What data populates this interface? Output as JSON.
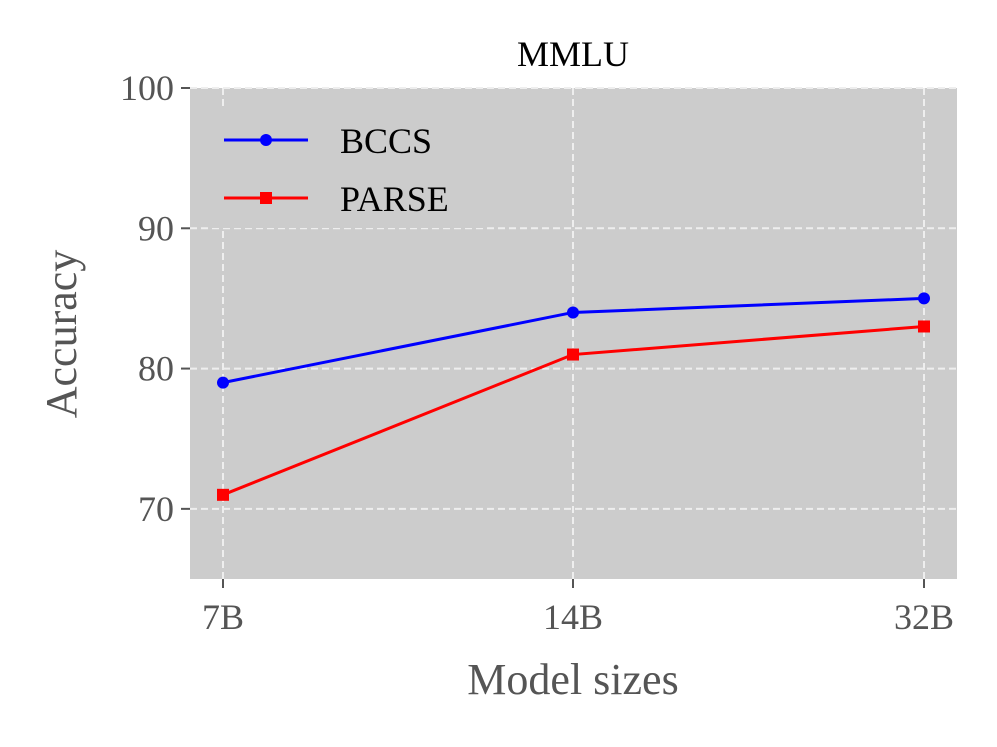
{
  "chart_data": {
    "type": "line",
    "title": "MMLU",
    "xlabel": "Model sizes",
    "ylabel": "Accuracy",
    "categories": [
      "7B",
      "14B",
      "32B"
    ],
    "yticks": [
      70,
      80,
      90,
      100
    ],
    "ylim": [
      65,
      100
    ],
    "grid": true,
    "legend_position": "top-left",
    "series": [
      {
        "name": "BCCS",
        "values": [
          79,
          84,
          85
        ],
        "color": "#0000ff",
        "marker": "circle"
      },
      {
        "name": "PARSE",
        "values": [
          71,
          81,
          83
        ],
        "color": "#ff0000",
        "marker": "square"
      }
    ],
    "colors": {
      "plot_background": "#cccccc",
      "grid": "#eeeeee",
      "tick_text": "#555555"
    }
  }
}
